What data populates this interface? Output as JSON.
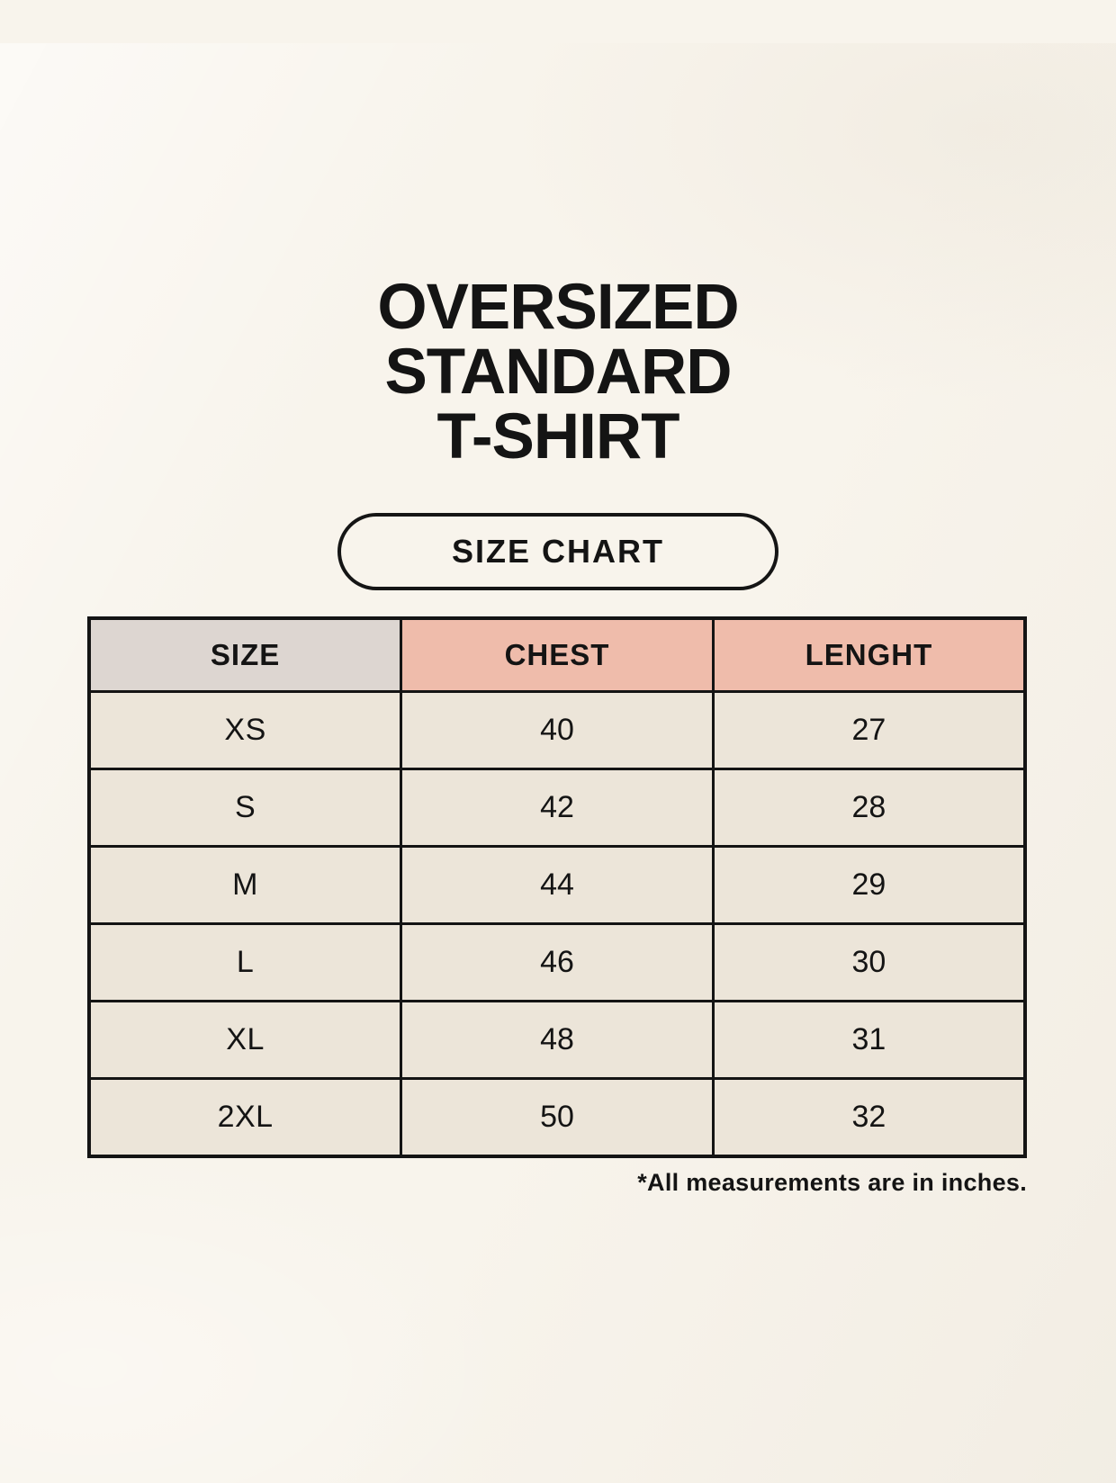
{
  "header": {
    "title_lines": [
      "OVERSIZED",
      "STANDARD",
      "T-SHIRT"
    ],
    "badge_label": "SIZE CHART"
  },
  "chart_data": {
    "type": "table",
    "title": "OVERSIZED STANDARD T-SHIRT SIZE CHART",
    "columns": [
      "SIZE",
      "CHEST",
      "LENGHT"
    ],
    "rows": [
      [
        "XS",
        "40",
        "27"
      ],
      [
        "S",
        "42",
        "28"
      ],
      [
        "M",
        "44",
        "29"
      ],
      [
        "L",
        "46",
        "30"
      ],
      [
        "XL",
        "48",
        "31"
      ],
      [
        "2XL",
        "50",
        "32"
      ]
    ],
    "units_note": "*All measurements are in inches."
  },
  "footnote": "*All measurements are in inches.",
  "colors": {
    "background": "#f8f4ec",
    "header_size_bg": "#ddd6d1",
    "header_measure_bg": "#efbcab",
    "size_column_bg": "#d9d2cf",
    "value_cell_bg": "#ece5d9",
    "border": "#141414",
    "text": "#141414"
  }
}
